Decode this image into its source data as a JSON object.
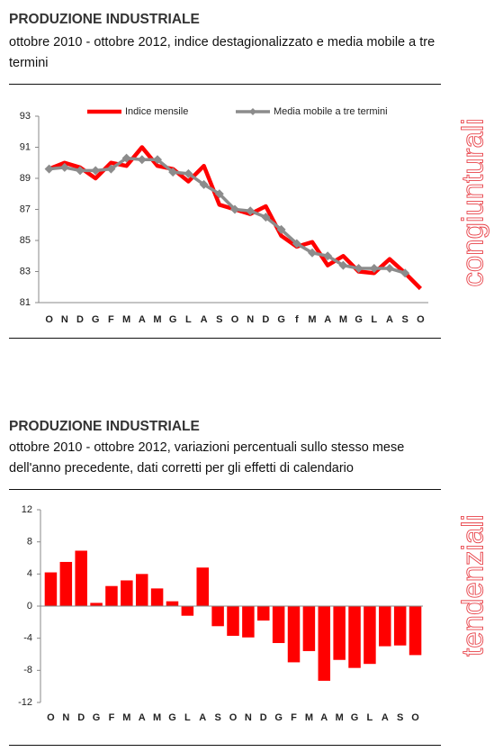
{
  "chart_data": [
    {
      "type": "line",
      "title": "PRODUZIONE INDUSTRIALE",
      "subtitle": "ottobre 2010 - ottobre 2012, indice destagionalizzato e media mobile a tre termini",
      "side_label": "congiunturali",
      "categories": [
        "O",
        "N",
        "D",
        "G",
        "F",
        "M",
        "A",
        "M",
        "G",
        "L",
        "A",
        "S",
        "O",
        "N",
        "D",
        "G",
        "f",
        "M",
        "A",
        "M",
        "G",
        "L",
        "A",
        "S",
        "O"
      ],
      "series": [
        {
          "name": "Indice mensile",
          "color": "#ff0000",
          "values": [
            89.6,
            90.0,
            89.7,
            89.0,
            90.0,
            89.8,
            91.0,
            89.8,
            89.6,
            88.8,
            89.8,
            87.3,
            87.0,
            86.7,
            87.2,
            85.3,
            84.6,
            84.9,
            83.4,
            84.0,
            83.0,
            82.9,
            83.8,
            82.9,
            81.9
          ]
        },
        {
          "name": "Media mobile a tre termini",
          "color": "#8c8c8c",
          "values": [
            89.6,
            89.7,
            89.5,
            89.5,
            89.6,
            90.3,
            90.2,
            90.2,
            89.4,
            89.3,
            88.6,
            88.0,
            87.0,
            86.9,
            86.5,
            85.7,
            84.8,
            84.2,
            84.0,
            83.4,
            83.2,
            83.2,
            83.2,
            82.9,
            null
          ]
        }
      ],
      "ylim": [
        81,
        93
      ],
      "yticks": [
        81,
        83,
        85,
        87,
        89,
        91,
        93
      ],
      "legend": "top"
    },
    {
      "type": "bar",
      "title": "PRODUZIONE INDUSTRIALE",
      "subtitle": "ottobre 2010 - ottobre 2012, variazioni percentuali sullo stesso mese dell'anno precedente, dati corretti per gli effetti di calendario",
      "side_label": "tendenziali",
      "categories": [
        "O",
        "N",
        "D",
        "G",
        "F",
        "M",
        "A",
        "M",
        "G",
        "L",
        "A",
        "S",
        "O",
        "N",
        "D",
        "G",
        "F",
        "M",
        "A",
        "M",
        "G",
        "L",
        "A",
        "S",
        "O"
      ],
      "values": [
        4.2,
        5.5,
        6.9,
        0.4,
        2.5,
        3.2,
        4.0,
        2.2,
        0.6,
        -1.2,
        4.8,
        -2.5,
        -3.7,
        -3.9,
        -1.8,
        -4.6,
        -7.0,
        -5.6,
        -9.3,
        -6.7,
        -7.7,
        -7.2,
        -5.0,
        -4.9,
        -6.1
      ],
      "color": "#ff0000",
      "ylim": [
        -12,
        12
      ],
      "yticks": [
        -12,
        -8,
        -4,
        0,
        4,
        8,
        12
      ]
    }
  ]
}
